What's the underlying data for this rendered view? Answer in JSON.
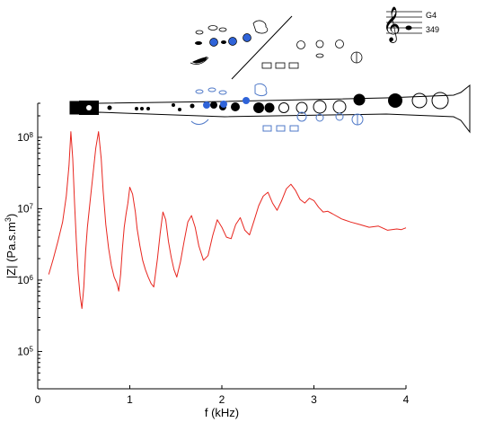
{
  "chart_data": {
    "type": "line",
    "title": "",
    "xlabel": "f (kHz)",
    "ylabel_parts": [
      "|Z| (Pa.s.m",
      "3",
      ")"
    ],
    "xlim": [
      0,
      4
    ],
    "ylim": [
      30000,
      300000000
    ],
    "y_scale": "log",
    "grid": false,
    "x_ticks": [
      0,
      1,
      2,
      3,
      4
    ],
    "x_tick_labels": [
      "0",
      "1",
      "2",
      "3",
      "4"
    ],
    "y_ticks": [
      {
        "value": 100000,
        "base": "10",
        "exp": "5"
      },
      {
        "value": 1000000,
        "base": "10",
        "exp": "6"
      },
      {
        "value": 10000000,
        "base": "10",
        "exp": "7"
      },
      {
        "value": 100000000,
        "base": "10",
        "exp": "8"
      }
    ],
    "series": [
      {
        "color": "#e8261f",
        "x": [
          0.12,
          0.17,
          0.22,
          0.27,
          0.31,
          0.34,
          0.36,
          0.38,
          0.4,
          0.42,
          0.44,
          0.46,
          0.48,
          0.5,
          0.52,
          0.54,
          0.57,
          0.6,
          0.63,
          0.66,
          0.69,
          0.71,
          0.74,
          0.77,
          0.8,
          0.83,
          0.86,
          0.88,
          0.9,
          0.92,
          0.94,
          0.96,
          0.98,
          1.0,
          1.03,
          1.06,
          1.08,
          1.11,
          1.14,
          1.17,
          1.2,
          1.23,
          1.26,
          1.3,
          1.33,
          1.36,
          1.39,
          1.42,
          1.45,
          1.48,
          1.51,
          1.55,
          1.59,
          1.63,
          1.67,
          1.71,
          1.75,
          1.8,
          1.85,
          1.9,
          1.95,
          2.0,
          2.05,
          2.1,
          2.15,
          2.2,
          2.25,
          2.3,
          2.35,
          2.4,
          2.45,
          2.5,
          2.55,
          2.6,
          2.65,
          2.7,
          2.75,
          2.8,
          2.85,
          2.9,
          2.95,
          3.0,
          3.05,
          3.1,
          3.15,
          3.2,
          3.3,
          3.4,
          3.5,
          3.6,
          3.7,
          3.8,
          3.9,
          3.95,
          4.0
        ],
        "y": [
          1200000,
          2000000,
          3500000,
          6500000,
          15000000,
          40000000,
          120000000,
          50000000,
          12000000,
          3500000,
          1200000,
          600000,
          400000,
          800000,
          2500000,
          5500000,
          13000000,
          30000000,
          70000000,
          120000000,
          50000000,
          18000000,
          6000000,
          2800000,
          1600000,
          1100000,
          900000,
          700000,
          1200000,
          2800000,
          5500000,
          8500000,
          12000000,
          20000000,
          16000000,
          9000000,
          5200000,
          3000000,
          1900000,
          1400000,
          1100000,
          900000,
          800000,
          2000000,
          4500000,
          9000000,
          7000000,
          3500000,
          2100000,
          1400000,
          1100000,
          1800000,
          3500000,
          6500000,
          8000000,
          5500000,
          3000000,
          1900000,
          2200000,
          4200000,
          7000000,
          5500000,
          4000000,
          3800000,
          6000000,
          7500000,
          5000000,
          4300000,
          6800000,
          11000000,
          15000000,
          17000000,
          12000000,
          9500000,
          13000000,
          19000000,
          22000000,
          18000000,
          13500000,
          12000000,
          14000000,
          13000000,
          10500000,
          9000000,
          9200000,
          8500000,
          7200000,
          6500000,
          6000000,
          5500000,
          5700000,
          5000000,
          5200000,
          5100000,
          5400000
        ]
      }
    ],
    "insets": {
      "fingering_note": "G4",
      "fingering_frequency": "349"
    }
  }
}
